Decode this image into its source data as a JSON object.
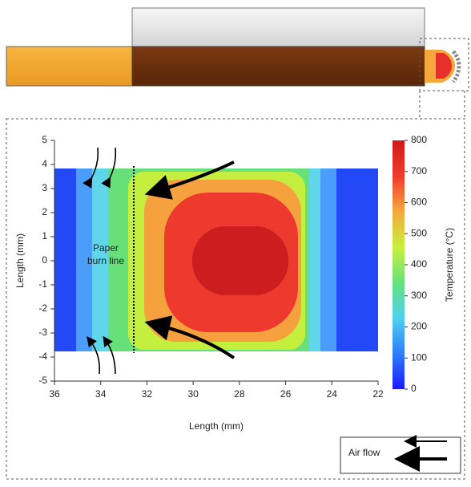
{
  "chart_data": {
    "type": "contour",
    "x_label": "Length (mm)",
    "y_label": "Length (mm)",
    "xlim": [
      36,
      22
    ],
    "xticks": [
      36,
      34,
      32,
      30,
      28,
      26,
      24,
      22
    ],
    "ylim": [
      -5,
      5
    ],
    "yticks": [
      -5,
      -4,
      -3,
      -2,
      -1,
      0,
      1,
      2,
      3,
      4,
      5
    ],
    "levels": [
      100,
      200,
      300,
      400,
      500,
      600,
      700,
      750
    ],
    "level_colors": [
      "#2348f5",
      "#4b9dfb",
      "#5fd6ea",
      "#67e07a",
      "#c5ef3f",
      "#f5a23e",
      "#ee3a2e",
      "#cc1d1f"
    ],
    "colorbar": {
      "label": "Temperature (°C)",
      "lim": [
        0,
        800
      ],
      "ticks": [
        0,
        100,
        200,
        300,
        400,
        500,
        600,
        700,
        800
      ],
      "colors": [
        "#1a1aff",
        "#2f7dfb",
        "#4fd2f0",
        "#66e27a",
        "#c8f03c",
        "#f5a83c",
        "#f03a2c",
        "#d01818"
      ]
    },
    "annotations": {
      "burn_line": [
        "Paper",
        "burn line"
      ],
      "air_flow": "Air flow"
    }
  }
}
